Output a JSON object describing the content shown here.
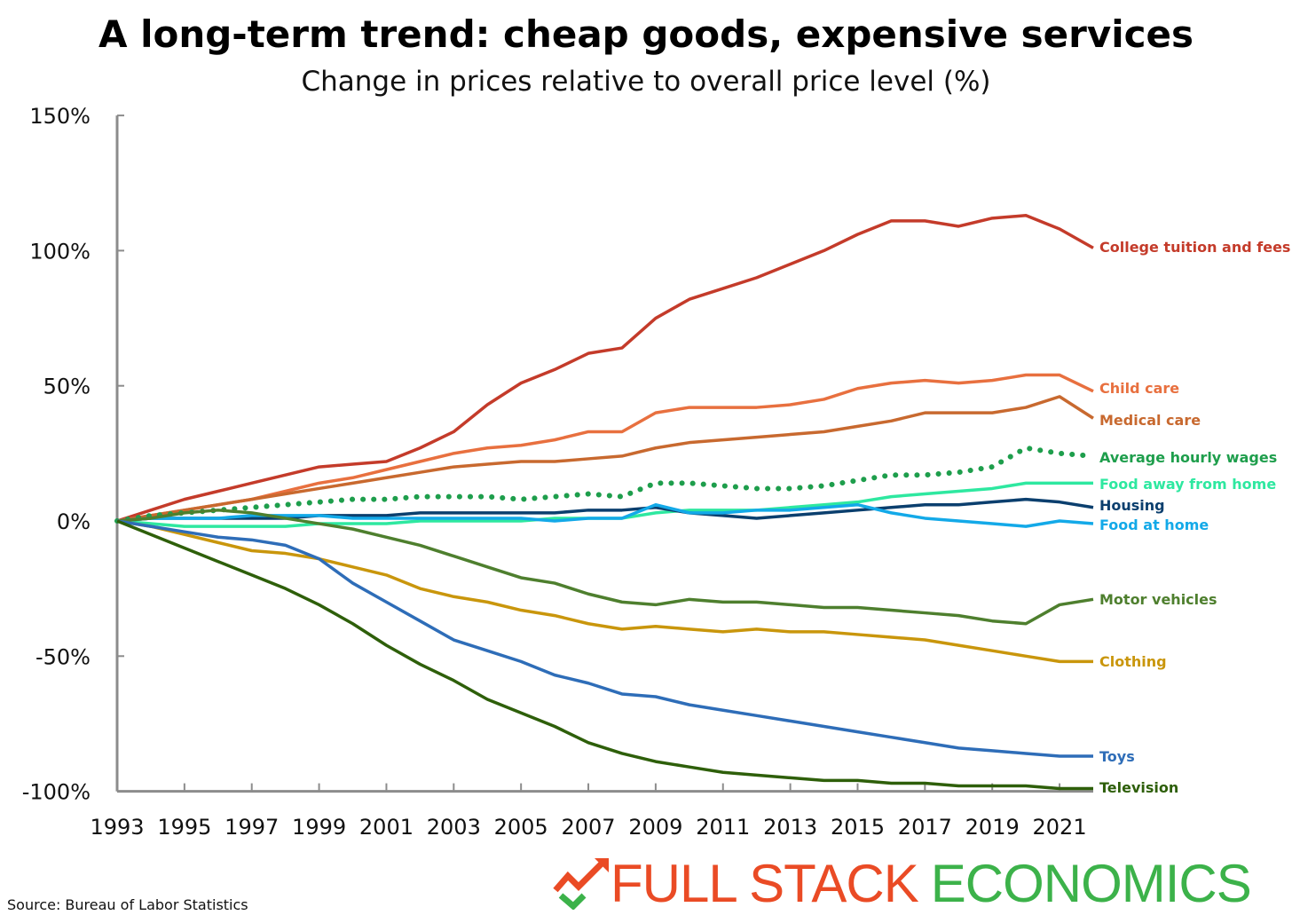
{
  "chart_data": {
    "type": "line",
    "title": "A long-term trend: cheap goods, expensive services",
    "subtitle": "Change in prices relative to overall price level (%)",
    "xlabel": "",
    "ylabel": "",
    "xlim": [
      1993,
      2022
    ],
    "ylim": [
      -100,
      150
    ],
    "x_ticks": [
      "1993",
      "1995",
      "1997",
      "1999",
      "2001",
      "2003",
      "2005",
      "2007",
      "2009",
      "2011",
      "2013",
      "2015",
      "2017",
      "2019",
      "2021"
    ],
    "y_ticks": [
      "150%",
      "100%",
      "50%",
      "0%",
      "-50%",
      "-100%"
    ],
    "y_tick_values": [
      150,
      100,
      50,
      0,
      -50,
      -100
    ],
    "grid": false,
    "legend": "direct labels at right",
    "x": [
      1993,
      1994,
      1995,
      1996,
      1997,
      1998,
      1999,
      2000,
      2001,
      2002,
      2003,
      2004,
      2005,
      2006,
      2007,
      2008,
      2009,
      2010,
      2011,
      2012,
      2013,
      2014,
      2015,
      2016,
      2017,
      2018,
      2019,
      2020,
      2021,
      2022
    ],
    "series": [
      {
        "name": "College tuition and fees",
        "color": "#c43b2a",
        "style": "solid",
        "values": [
          0,
          4,
          8,
          11,
          14,
          17,
          20,
          21,
          22,
          27,
          33,
          43,
          51,
          56,
          62,
          64,
          75,
          82,
          86,
          90,
          95,
          100,
          106,
          111,
          111,
          109,
          112,
          113,
          108,
          101
        ]
      },
      {
        "name": "Child care",
        "color": "#e8703f",
        "style": "solid",
        "values": [
          0,
          2,
          4,
          6,
          8,
          11,
          14,
          16,
          19,
          22,
          25,
          27,
          28,
          30,
          33,
          33,
          40,
          42,
          42,
          42,
          43,
          45,
          49,
          51,
          52,
          51,
          52,
          54,
          54,
          48
        ]
      },
      {
        "name": "Medical care",
        "color": "#c8692f",
        "style": "solid",
        "values": [
          0,
          2,
          4,
          6,
          8,
          10,
          12,
          14,
          16,
          18,
          20,
          21,
          22,
          22,
          23,
          24,
          27,
          29,
          30,
          31,
          32,
          33,
          35,
          37,
          40,
          40,
          40,
          42,
          46,
          38
        ]
      },
      {
        "name": "Average hourly wages",
        "color": "#1e9e4c",
        "style": "dotted",
        "values": [
          0,
          2,
          3,
          4,
          5,
          6,
          7,
          8,
          8,
          9,
          9,
          9,
          8,
          9,
          10,
          9,
          14,
          14,
          13,
          12,
          12,
          13,
          15,
          17,
          17,
          18,
          20,
          27,
          25,
          24
        ]
      },
      {
        "name": "Food away from home",
        "color": "#2ee8a0",
        "style": "solid",
        "values": [
          0,
          -1,
          -2,
          -2,
          -2,
          -2,
          -1,
          -1,
          -1,
          0,
          0,
          0,
          0,
          1,
          1,
          1,
          3,
          4,
          4,
          4,
          5,
          6,
          7,
          9,
          10,
          11,
          12,
          14,
          14,
          14
        ]
      },
      {
        "name": "Housing",
        "color": "#0b3f6e",
        "style": "solid",
        "values": [
          0,
          1,
          1,
          1,
          1,
          1,
          2,
          2,
          2,
          3,
          3,
          3,
          3,
          3,
          4,
          4,
          5,
          3,
          2,
          1,
          2,
          3,
          4,
          5,
          6,
          6,
          7,
          8,
          7,
          5
        ]
      },
      {
        "name": "Food at home",
        "color": "#13a9e8",
        "style": "solid",
        "values": [
          0,
          1,
          1,
          1,
          2,
          2,
          2,
          1,
          1,
          1,
          1,
          1,
          1,
          0,
          1,
          1,
          6,
          3,
          3,
          4,
          4,
          5,
          6,
          3,
          1,
          0,
          -1,
          -2,
          0,
          -1
        ]
      },
      {
        "name": "Motor vehicles",
        "color": "#4e7f2e",
        "style": "solid",
        "values": [
          0,
          1,
          3,
          4,
          3,
          1,
          -1,
          -3,
          -6,
          -9,
          -13,
          -17,
          -21,
          -23,
          -27,
          -30,
          -31,
          -29,
          -30,
          -30,
          -31,
          -32,
          -32,
          -33,
          -34,
          -35,
          -37,
          -38,
          -31,
          -29
        ]
      },
      {
        "name": "Clothing",
        "color": "#c9960c",
        "style": "solid",
        "values": [
          0,
          -2,
          -5,
          -8,
          -11,
          -12,
          -14,
          -17,
          -20,
          -25,
          -28,
          -30,
          -33,
          -35,
          -38,
          -40,
          -39,
          -40,
          -41,
          -40,
          -41,
          -41,
          -42,
          -43,
          -44,
          -46,
          -48,
          -50,
          -52,
          -52
        ]
      },
      {
        "name": "Toys",
        "color": "#2e6db8",
        "style": "solid",
        "values": [
          0,
          -2,
          -4,
          -6,
          -7,
          -9,
          -14,
          -23,
          -30,
          -37,
          -44,
          -48,
          -52,
          -57,
          -60,
          -64,
          -65,
          -68,
          -70,
          -72,
          -74,
          -76,
          -78,
          -80,
          -82,
          -84,
          -85,
          -86,
          -87,
          -87
        ]
      },
      {
        "name": "Television",
        "color": "#2e5f0a",
        "style": "solid",
        "values": [
          0,
          -5,
          -10,
          -15,
          -20,
          -25,
          -31,
          -38,
          -46,
          -53,
          -59,
          -66,
          -71,
          -76,
          -82,
          -86,
          -89,
          -91,
          -93,
          -94,
          -95,
          -96,
          -96,
          -97,
          -97,
          -98,
          -98,
          -98,
          -99,
          -99
        ]
      }
    ]
  },
  "source": "Source: Bureau of Labor Statistics",
  "logo": {
    "word1": "FULL STACK",
    "word2": "ECONOMICS",
    "color1": "#ea4b25",
    "color2": "#3cb24a"
  }
}
